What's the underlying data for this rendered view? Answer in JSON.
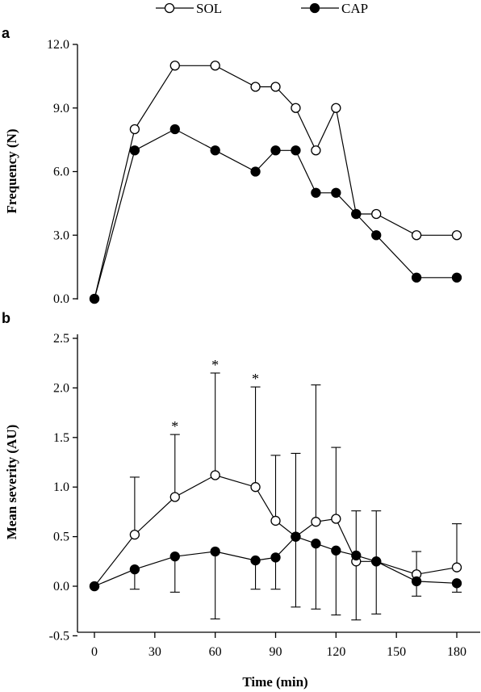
{
  "legend": [
    {
      "name": "SOL",
      "marker": "open-circle"
    },
    {
      "name": "CAP",
      "marker": "filled-circle"
    }
  ],
  "chart_data": [
    {
      "type": "line",
      "panel_label": "a",
      "title": "",
      "xlabel": "",
      "ylabel": "Frequency (N)",
      "x": [
        0,
        20,
        40,
        60,
        80,
        90,
        100,
        110,
        120,
        130,
        140,
        160,
        180
      ],
      "ylim": [
        0,
        12
      ],
      "yticks": [
        "0.0",
        "3.0",
        "6.0",
        "9.0",
        "12.0"
      ],
      "grid": false,
      "series": [
        {
          "name": "SOL",
          "marker": "open-circle",
          "values": [
            0,
            8,
            11,
            11,
            10,
            10,
            9,
            7,
            9,
            4,
            4,
            3,
            3
          ]
        },
        {
          "name": "CAP",
          "marker": "filled-circle",
          "values": [
            0,
            7,
            8,
            7,
            6,
            7,
            7,
            5,
            5,
            4,
            3,
            1,
            1
          ]
        }
      ]
    },
    {
      "type": "line",
      "panel_label": "b",
      "title": "",
      "xlabel": "Time (min)",
      "ylabel": "Mean severity (AU)",
      "x": [
        0,
        20,
        40,
        60,
        80,
        90,
        100,
        110,
        120,
        130,
        140,
        160,
        180
      ],
      "xlim": [
        -10,
        190
      ],
      "xticks": [
        "0",
        "30",
        "60",
        "90",
        "120",
        "150",
        "180"
      ],
      "ylim": [
        -0.5,
        2.5
      ],
      "yticks": [
        "-0.5",
        "0.0",
        "0.5",
        "1.0",
        "1.5",
        "2.0",
        "2.5"
      ],
      "grid": false,
      "series": [
        {
          "name": "SOL",
          "marker": "open-circle",
          "values": [
            0,
            0.52,
            0.9,
            1.12,
            1.0,
            0.66,
            0.5,
            0.65,
            0.68,
            0.25,
            0.25,
            0.12,
            0.19
          ],
          "error_upper": [
            0,
            1.1,
            1.53,
            2.15,
            2.01,
            1.32,
            1.34,
            2.03,
            1.4,
            0.76,
            0.76,
            0.35,
            0.63
          ],
          "error_lower": [
            0,
            0.52,
            0.9,
            1.12,
            1.0,
            0.66,
            0.5,
            0.65,
            0.68,
            0.25,
            0.25,
            0.12,
            0.19
          ]
        },
        {
          "name": "CAP",
          "marker": "filled-circle",
          "values": [
            0,
            0.17,
            0.3,
            0.35,
            0.26,
            0.29,
            0.5,
            0.43,
            0.36,
            0.31,
            0.25,
            0.05,
            0.03
          ],
          "error_upper": [
            0,
            0.17,
            0.3,
            0.35,
            0.26,
            0.29,
            0.5,
            0.43,
            0.36,
            0.31,
            0.25,
            0.05,
            0.03
          ],
          "error_lower": [
            0,
            -0.03,
            -0.06,
            -0.33,
            -0.03,
            -0.03,
            -0.21,
            -0.23,
            -0.29,
            -0.34,
            -0.28,
            -0.1,
            -0.06
          ]
        }
      ],
      "annotations": [
        {
          "text": "*",
          "x": 40,
          "y": 1.53
        },
        {
          "text": "*",
          "x": 60,
          "y": 2.15
        },
        {
          "text": "*",
          "x": 80,
          "y": 2.01
        }
      ]
    }
  ]
}
